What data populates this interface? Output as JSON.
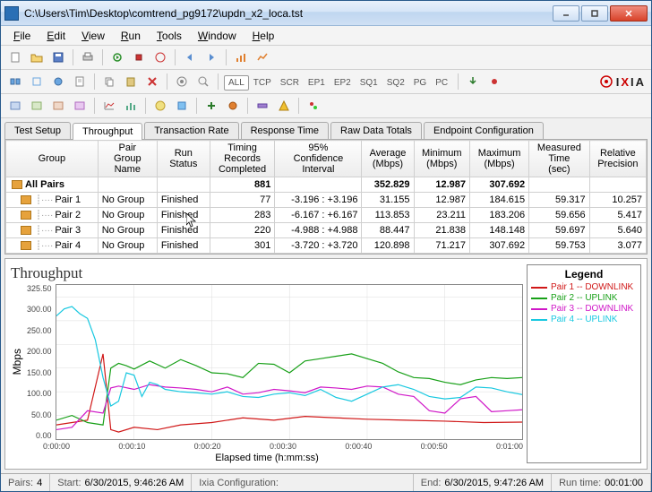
{
  "window": {
    "title": "C:\\Users\\Tim\\Desktop\\comtrend_pg9172\\updn_x2_loca.tst"
  },
  "menu": [
    "File",
    "Edit",
    "View",
    "Run",
    "Tools",
    "Window",
    "Help"
  ],
  "ep_buttons": [
    "ALL",
    "TCP",
    "SCR",
    "EP1",
    "EP2",
    "SQ1",
    "SQ2",
    "PG",
    "PC"
  ],
  "logo": "IXIA",
  "tabs": [
    "Test Setup",
    "Throughput",
    "Transaction Rate",
    "Response Time",
    "Raw Data Totals",
    "Endpoint Configuration"
  ],
  "active_tab": 1,
  "grid": {
    "headers": [
      "Group",
      "Pair Group Name",
      "Run Status",
      "Timing Records Completed",
      "95% Confidence Interval",
      "Average (Mbps)",
      "Minimum (Mbps)",
      "Maximum (Mbps)",
      "Measured Time (sec)",
      "Relative Precision"
    ],
    "total": {
      "label": "All Pairs",
      "timing": "881",
      "avg": "352.829",
      "min": "12.987",
      "max": "307.692"
    },
    "rows": [
      {
        "name": "Pair 1",
        "group": "No Group",
        "status": "Finished",
        "timing": "77",
        "ci": "-3.196 : +3.196",
        "avg": "31.155",
        "min": "12.987",
        "max": "184.615",
        "time": "59.317",
        "prec": "10.257"
      },
      {
        "name": "Pair 2",
        "group": "No Group",
        "status": "Finished",
        "timing": "283",
        "ci": "-6.167 : +6.167",
        "avg": "113.853",
        "min": "23.211",
        "max": "183.206",
        "time": "59.656",
        "prec": "5.417"
      },
      {
        "name": "Pair 3",
        "group": "No Group",
        "status": "Finished",
        "timing": "220",
        "ci": "-4.988 : +4.988",
        "avg": "88.447",
        "min": "21.838",
        "max": "148.148",
        "time": "59.697",
        "prec": "5.640"
      },
      {
        "name": "Pair 4",
        "group": "No Group",
        "status": "Finished",
        "timing": "301",
        "ci": "-3.720 : +3.720",
        "avg": "120.898",
        "min": "71.217",
        "max": "307.692",
        "time": "59.753",
        "prec": "3.077"
      }
    ]
  },
  "chart": {
    "title": "Throughput",
    "ylabel": "Mbps",
    "xlabel": "Elapsed time (h:mm:ss)",
    "ymax": 325.5,
    "yticks": [
      "325.50",
      "300.00",
      "250.00",
      "200.00",
      "150.00",
      "100.00",
      "50.00",
      "0.00"
    ],
    "xticks": [
      "0:00:00",
      "0:00:10",
      "0:00:20",
      "0:00:30",
      "0:00:40",
      "0:00:50",
      "0:01:00"
    ],
    "legend_title": "Legend",
    "series": [
      {
        "label": "Pair 1 -- DOWNLINK",
        "color": "#d01818"
      },
      {
        "label": "Pair 2 -- UPLINK",
        "color": "#18a018"
      },
      {
        "label": "Pair 3 -- DOWNLINK",
        "color": "#d018c8"
      },
      {
        "label": "Pair 4 -- UPLINK",
        "color": "#18c8e0"
      }
    ],
    "grid_color": "#d8d8d8",
    "paths": {
      "pair1": [
        [
          0,
          30
        ],
        [
          2,
          35
        ],
        [
          4,
          40
        ],
        [
          6,
          180
        ],
        [
          7,
          20
        ],
        [
          8,
          15
        ],
        [
          10,
          25
        ],
        [
          13,
          20
        ],
        [
          16,
          30
        ],
        [
          20,
          35
        ],
        [
          24,
          45
        ],
        [
          28,
          40
        ],
        [
          32,
          48
        ],
        [
          36,
          45
        ],
        [
          40,
          42
        ],
        [
          45,
          40
        ],
        [
          50,
          38
        ],
        [
          55,
          35
        ],
        [
          60,
          36
        ]
      ],
      "pair2": [
        [
          0,
          40
        ],
        [
          2,
          50
        ],
        [
          4,
          35
        ],
        [
          6,
          30
        ],
        [
          7,
          150
        ],
        [
          8,
          160
        ],
        [
          9,
          155
        ],
        [
          10,
          148
        ],
        [
          12,
          165
        ],
        [
          14,
          150
        ],
        [
          16,
          168
        ],
        [
          18,
          155
        ],
        [
          20,
          140
        ],
        [
          22,
          138
        ],
        [
          24,
          130
        ],
        [
          26,
          160
        ],
        [
          28,
          158
        ],
        [
          30,
          140
        ],
        [
          32,
          165
        ],
        [
          34,
          170
        ],
        [
          36,
          175
        ],
        [
          38,
          180
        ],
        [
          40,
          170
        ],
        [
          42,
          160
        ],
        [
          44,
          142
        ],
        [
          46,
          130
        ],
        [
          48,
          128
        ],
        [
          50,
          120
        ],
        [
          52,
          115
        ],
        [
          54,
          125
        ],
        [
          56,
          130
        ],
        [
          58,
          128
        ],
        [
          60,
          130
        ]
      ],
      "pair3": [
        [
          0,
          20
        ],
        [
          2,
          25
        ],
        [
          4,
          60
        ],
        [
          6,
          55
        ],
        [
          7,
          108
        ],
        [
          8,
          112
        ],
        [
          10,
          105
        ],
        [
          12,
          115
        ],
        [
          14,
          110
        ],
        [
          16,
          108
        ],
        [
          18,
          105
        ],
        [
          20,
          100
        ],
        [
          22,
          110
        ],
        [
          24,
          95
        ],
        [
          26,
          98
        ],
        [
          28,
          105
        ],
        [
          30,
          102
        ],
        [
          32,
          98
        ],
        [
          34,
          110
        ],
        [
          36,
          108
        ],
        [
          38,
          105
        ],
        [
          40,
          112
        ],
        [
          42,
          110
        ],
        [
          44,
          95
        ],
        [
          46,
          90
        ],
        [
          48,
          60
        ],
        [
          50,
          55
        ],
        [
          52,
          85
        ],
        [
          54,
          90
        ],
        [
          56,
          58
        ],
        [
          58,
          60
        ],
        [
          60,
          62
        ]
      ],
      "pair4": [
        [
          0,
          260
        ],
        [
          1,
          275
        ],
        [
          2,
          280
        ],
        [
          3,
          265
        ],
        [
          4,
          255
        ],
        [
          5,
          210
        ],
        [
          6,
          130
        ],
        [
          7,
          70
        ],
        [
          8,
          80
        ],
        [
          9,
          140
        ],
        [
          10,
          135
        ],
        [
          11,
          90
        ],
        [
          12,
          120
        ],
        [
          13,
          115
        ],
        [
          14,
          105
        ],
        [
          16,
          100
        ],
        [
          18,
          98
        ],
        [
          20,
          95
        ],
        [
          22,
          100
        ],
        [
          24,
          90
        ],
        [
          26,
          88
        ],
        [
          28,
          95
        ],
        [
          30,
          98
        ],
        [
          32,
          92
        ],
        [
          34,
          105
        ],
        [
          36,
          88
        ],
        [
          38,
          80
        ],
        [
          40,
          95
        ],
        [
          42,
          110
        ],
        [
          44,
          115
        ],
        [
          46,
          105
        ],
        [
          48,
          90
        ],
        [
          50,
          85
        ],
        [
          52,
          88
        ],
        [
          54,
          110
        ],
        [
          56,
          108
        ],
        [
          58,
          100
        ],
        [
          60,
          94
        ]
      ]
    }
  },
  "status": {
    "pairs_label": "Pairs:",
    "pairs": "4",
    "start_label": "Start:",
    "start": "6/30/2015, 9:46:26 AM",
    "config_label": "Ixia Configuration:",
    "end_label": "End:",
    "end": "6/30/2015, 9:47:26 AM",
    "run_label": "Run time:",
    "run": "00:01:00"
  }
}
